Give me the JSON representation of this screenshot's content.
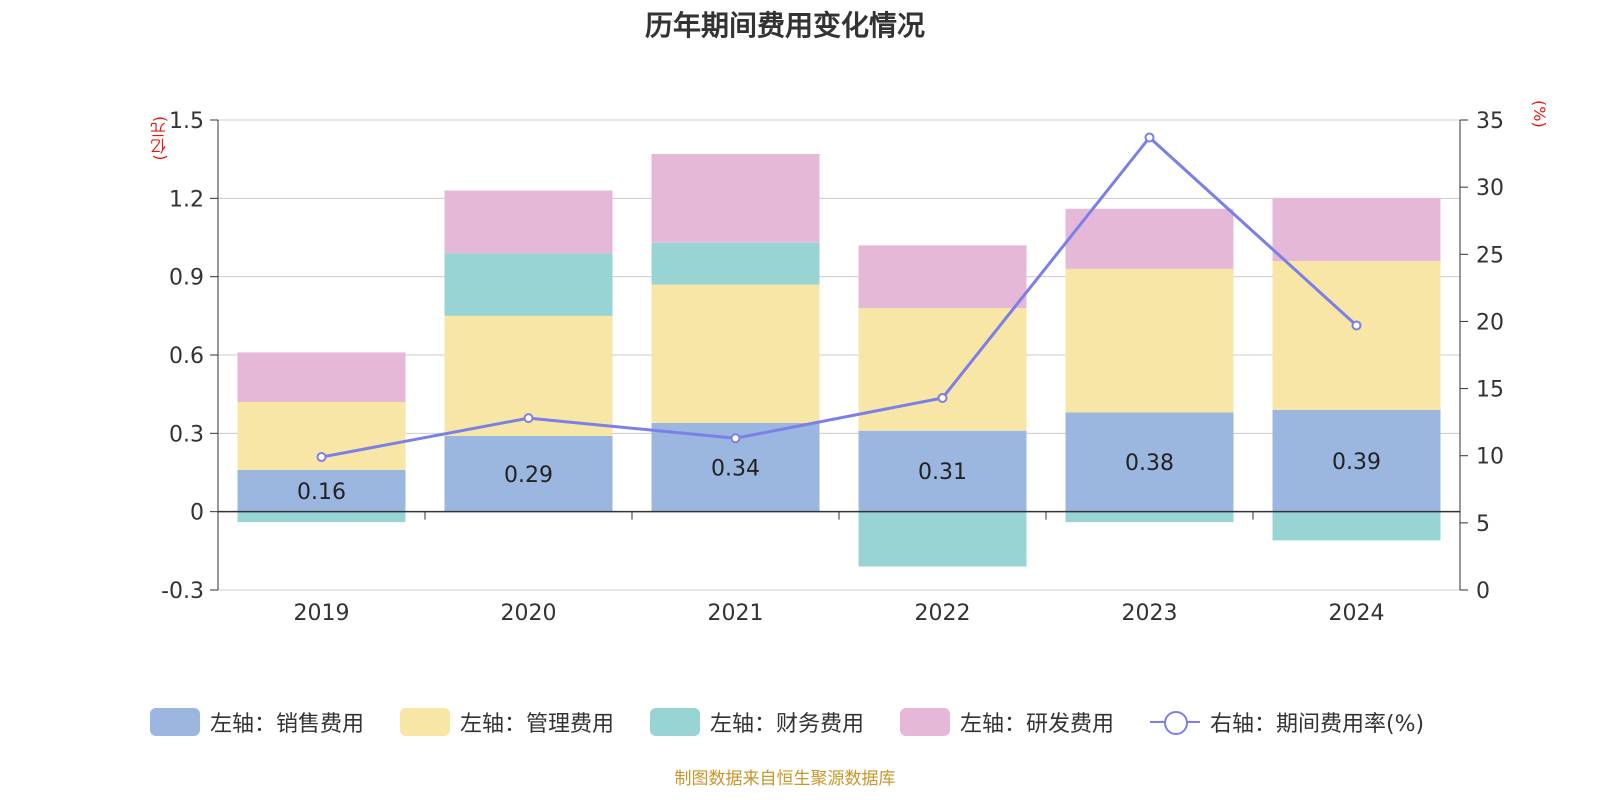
{
  "title": "历年期间费用变化情况",
  "left_axis_unit": "(亿元)",
  "right_axis_unit": "(%)",
  "source": "制图数据来自恒生聚源数据库",
  "colors": {
    "sales": "#9bb7e0",
    "admin": "#f7e6a6",
    "finance": "#98d4d4",
    "rnd": "#e6b8d8",
    "rate": "#7b7fe8",
    "axis_unit": "#e8190c"
  },
  "legend": [
    {
      "label": "左轴：销售费用",
      "key": "sales"
    },
    {
      "label": "左轴：管理费用",
      "key": "admin"
    },
    {
      "label": "左轴：财务费用",
      "key": "finance"
    },
    {
      "label": "左轴：研发费用",
      "key": "rnd"
    },
    {
      "label": "右轴：期间费用率(%)",
      "key": "rate"
    }
  ],
  "chart_data": {
    "type": "bar",
    "stacked": true,
    "categories": [
      "2019",
      "2020",
      "2021",
      "2022",
      "2023",
      "2024"
    ],
    "series": [
      {
        "name": "左轴：销售费用",
        "key": "sales",
        "axis": "left",
        "values": [
          0.16,
          0.29,
          0.34,
          0.31,
          0.38,
          0.39
        ],
        "labels": [
          "0.16",
          "0.29",
          "0.34",
          "0.31",
          "0.38",
          "0.39"
        ]
      },
      {
        "name": "左轴：管理费用",
        "key": "admin",
        "axis": "left",
        "values": [
          0.26,
          0.46,
          0.53,
          0.47,
          0.55,
          0.57
        ]
      },
      {
        "name": "左轴：财务费用",
        "key": "finance",
        "axis": "left",
        "values": [
          -0.04,
          0.24,
          0.16,
          -0.21,
          -0.04,
          -0.11
        ]
      },
      {
        "name": "左轴：研发费用",
        "key": "rnd",
        "axis": "left",
        "values": [
          0.19,
          0.24,
          0.34,
          0.24,
          0.23,
          0.24
        ]
      },
      {
        "name": "右轴：期间费用率(%)",
        "key": "rate",
        "axis": "right",
        "type": "line",
        "values": [
          9.9,
          12.8,
          11.3,
          14.3,
          33.7,
          19.7
        ]
      }
    ],
    "left_axis": {
      "min": -0.3,
      "max": 1.5,
      "ticks": [
        "-0.3",
        "0",
        "0.3",
        "0.6",
        "0.9",
        "1.2",
        "1.5"
      ]
    },
    "right_axis": {
      "min": 0,
      "max": 35,
      "ticks": [
        "0",
        "5",
        "10",
        "15",
        "20",
        "25",
        "30",
        "35"
      ]
    },
    "grid": true,
    "legend_position": "bottom"
  }
}
